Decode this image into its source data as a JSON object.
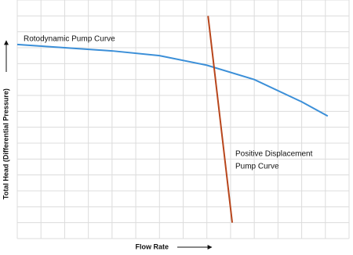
{
  "chart_data": {
    "type": "line",
    "xlabel": "Flow Rate",
    "ylabel": "Total Head (Differential Pressure)",
    "annotations": [
      "Rotodynamic Pump Curve",
      "Positive Displacement",
      "Pump Curve"
    ],
    "series": [
      {
        "color": "#3b8fd8",
        "x": [
          0,
          2,
          4,
          6,
          8,
          10,
          12,
          13.1
        ],
        "values": [
          12.2,
          12.0,
          11.8,
          11.5,
          10.9,
          10.0,
          8.6,
          7.7
        ]
      },
      {
        "color": "#b8461c",
        "x": [
          8.05,
          9.07
        ],
        "values": [
          14.0,
          1.0
        ]
      }
    ],
    "xlim": [
      0,
      14
    ],
    "xticks": [
      0,
      1,
      2,
      3,
      4,
      5,
      6,
      7,
      8,
      9,
      10,
      11,
      12,
      13,
      14
    ],
    "ylim": [
      0,
      15
    ],
    "yticks": [
      0,
      1,
      2,
      3,
      4,
      5,
      6,
      7,
      8,
      9,
      10,
      11,
      12,
      13,
      14,
      15
    ],
    "grid": true
  }
}
